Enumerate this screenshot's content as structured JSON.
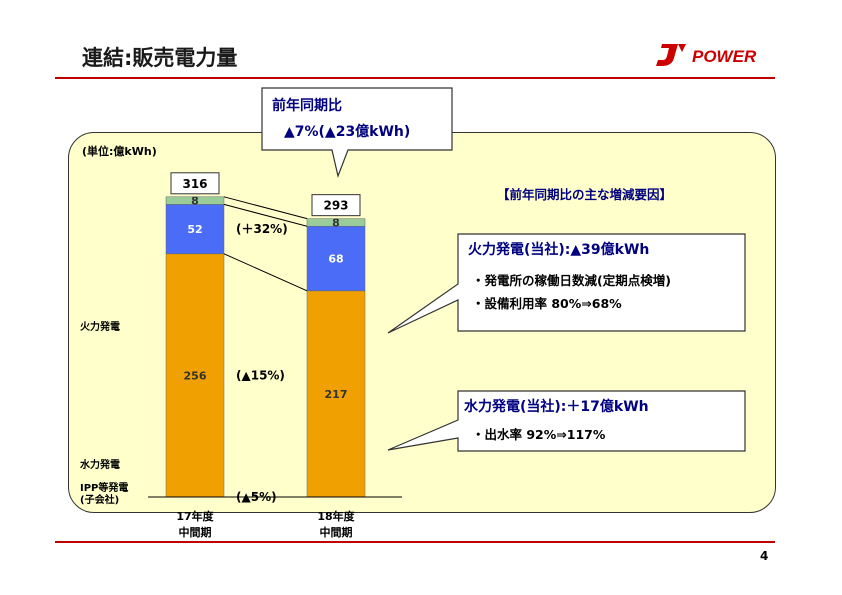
{
  "header": {
    "title": "連結:販売電力量",
    "logo_text": "POWER"
  },
  "page_number": "4",
  "chart_data": {
    "type": "bar",
    "stacked": true,
    "unit": "(単位:億kWh)",
    "categories": [
      "17年度\n中間期",
      "18年度\n中間期"
    ],
    "totals": [
      316,
      293
    ],
    "series": [
      {
        "name": "火力発電",
        "values": [
          256,
          217
        ],
        "change": "(▲15%)",
        "color": "#f0a000"
      },
      {
        "name": "水力発電",
        "values": [
          52,
          68
        ],
        "change": "(＋32%)",
        "color": "#4a6cf7"
      },
      {
        "name": "IPP等発電\n(子会社)",
        "values": [
          8,
          8
        ],
        "change": "(▲5%)",
        "color": "#99cc99"
      }
    ]
  },
  "yoy_callout": {
    "line1": "前年同期比",
    "line2": "▲7%(▲23億kWh)"
  },
  "factors": {
    "heading": "【前年同期比の主な増減要因】",
    "thermal": {
      "head": "火力発電(当社):▲39億kWh",
      "lines": [
        "・発電所の稼働日数減(定期点検増)",
        "・設備利用率 80%⇒68%"
      ]
    },
    "hydro": {
      "head": "水力発電(当社):＋17億kWh",
      "lines": [
        "・出水率 92%⇒117%"
      ]
    }
  }
}
